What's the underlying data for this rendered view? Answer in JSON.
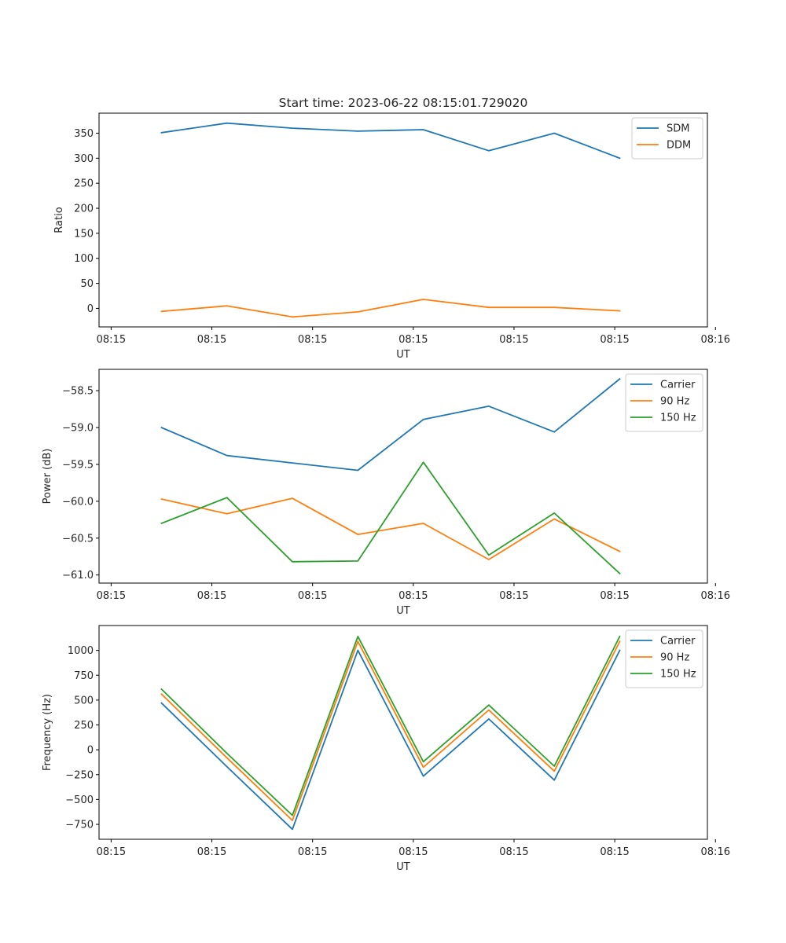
{
  "chart_data": [
    {
      "type": "line",
      "title": "Start time: 2023-06-22 08:15:01.729020",
      "xlabel": "UT",
      "ylabel": "Ratio",
      "xlim": [
        -0.12,
        5.92
      ],
      "ylim": [
        -37,
        390
      ],
      "x_ticks": [
        0,
        1,
        2,
        3,
        4,
        5,
        6
      ],
      "x_tick_labels": [
        "08:15",
        "08:15",
        "08:15",
        "08:15",
        "08:15",
        "08:15",
        "08:16"
      ],
      "y_ticks": [
        0,
        50,
        100,
        150,
        200,
        250,
        300,
        350
      ],
      "y_tick_labels": [
        "0",
        "50",
        "100",
        "150",
        "200",
        "250",
        "300",
        "350"
      ],
      "legend_position": "top-right",
      "x": [
        0.5,
        1.15,
        1.8,
        2.45,
        3.1,
        3.75,
        4.4,
        5.05
      ],
      "series": [
        {
          "name": "SDM",
          "color": "#1f77b4",
          "values": [
            351,
            370,
            360,
            354,
            357,
            315,
            350,
            300
          ]
        },
        {
          "name": "DDM",
          "color": "#ff7f0e",
          "values": [
            -6,
            5,
            -17,
            -7,
            18,
            2,
            2,
            -5
          ]
        }
      ]
    },
    {
      "type": "line",
      "title": "",
      "xlabel": "UT",
      "ylabel": "Power (dB)",
      "xlim": [
        -0.12,
        5.92
      ],
      "ylim": [
        -61.11,
        -58.21
      ],
      "x_ticks": [
        0,
        1,
        2,
        3,
        4,
        5,
        6
      ],
      "x_tick_labels": [
        "08:15",
        "08:15",
        "08:15",
        "08:15",
        "08:15",
        "08:15",
        "08:16"
      ],
      "y_ticks": [
        -61.0,
        -60.5,
        -60.0,
        -59.5,
        -59.0,
        -58.5
      ],
      "y_tick_labels": [
        "−61.0",
        "−60.5",
        "−60.0",
        "−59.5",
        "−59.0",
        "−58.5"
      ],
      "legend_position": "top-right",
      "x": [
        0.5,
        1.15,
        1.8,
        2.45,
        3.1,
        3.75,
        4.4,
        5.05
      ],
      "series": [
        {
          "name": "Carrier",
          "color": "#1f77b4",
          "values": [
            -59.0,
            -59.38,
            -59.48,
            -59.58,
            -58.89,
            -58.71,
            -59.06,
            -58.34
          ]
        },
        {
          "name": "90 Hz",
          "color": "#ff7f0e",
          "values": [
            -59.97,
            -60.17,
            -59.96,
            -60.45,
            -60.3,
            -60.79,
            -60.24,
            -60.68
          ]
        },
        {
          "name": "150 Hz",
          "color": "#2ca02c",
          "values": [
            -60.3,
            -59.95,
            -60.82,
            -60.81,
            -59.47,
            -60.73,
            -60.16,
            -60.98
          ]
        }
      ]
    },
    {
      "type": "line",
      "title": "",
      "xlabel": "UT",
      "ylabel": "Frequency (Hz)",
      "xlim": [
        -0.12,
        5.92
      ],
      "ylim": [
        -900,
        1250
      ],
      "x_ticks": [
        0,
        1,
        2,
        3,
        4,
        5,
        6
      ],
      "x_tick_labels": [
        "08:15",
        "08:15",
        "08:15",
        "08:15",
        "08:15",
        "08:15",
        "08:16"
      ],
      "y_ticks": [
        -750,
        -500,
        -250,
        0,
        250,
        500,
        750,
        1000
      ],
      "y_tick_labels": [
        "−750",
        "−500",
        "−250",
        "0",
        "250",
        "500",
        "750",
        "1000"
      ],
      "legend_position": "top-right",
      "x": [
        0.5,
        1.15,
        1.8,
        2.45,
        3.1,
        3.75,
        4.4,
        5.05
      ],
      "series": [
        {
          "name": "Carrier",
          "color": "#1f77b4",
          "values": [
            470,
            -170,
            -800,
            1000,
            -265,
            310,
            -305,
            1000
          ]
        },
        {
          "name": "90 Hz",
          "color": "#ff7f0e",
          "values": [
            560,
            -80,
            -710,
            1090,
            -175,
            400,
            -215,
            1090
          ]
        },
        {
          "name": "150 Hz",
          "color": "#2ca02c",
          "values": [
            610,
            -35,
            -660,
            1140,
            -120,
            450,
            -165,
            1140
          ]
        }
      ]
    }
  ]
}
